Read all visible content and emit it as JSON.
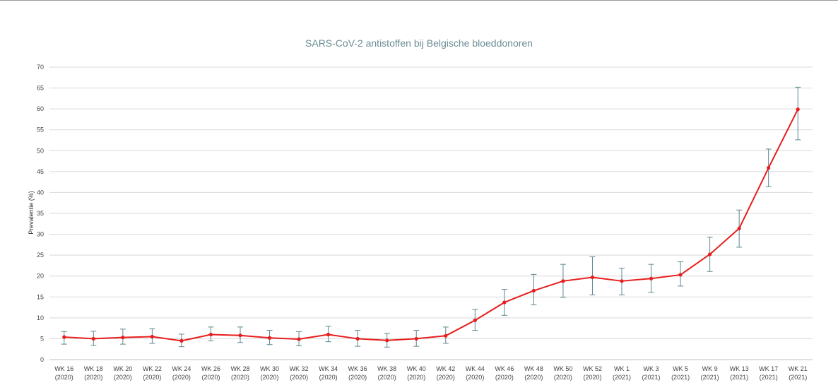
{
  "chart_data": {
    "type": "line",
    "title": "SARS-CoV-2 antistoffen bij Belgische bloeddonoren",
    "xlabel": "",
    "ylabel": "Prevalentie (%)",
    "ylim": [
      0,
      70
    ],
    "yticks": [
      0,
      5,
      10,
      15,
      20,
      25,
      30,
      35,
      40,
      45,
      50,
      55,
      60,
      65,
      70
    ],
    "grid": true,
    "legend": "none",
    "categories": [
      [
        "WK 16",
        "(2020)"
      ],
      [
        "WK 18",
        "(2020)"
      ],
      [
        "WK 20",
        "(2020)"
      ],
      [
        "WK 22",
        "(2020)"
      ],
      [
        "WK 24",
        "(2020)"
      ],
      [
        "WK 26",
        "(2020)"
      ],
      [
        "WK 28",
        "(2020)"
      ],
      [
        "WK 30",
        "(2020)"
      ],
      [
        "WK 32",
        "(2020)"
      ],
      [
        "WK 34",
        "(2020)"
      ],
      [
        "WK 36",
        "(2020)"
      ],
      [
        "WK 38",
        "(2020)"
      ],
      [
        "WK 40",
        "(2020)"
      ],
      [
        "WK 42",
        "(2020)"
      ],
      [
        "WK 44",
        "(2020)"
      ],
      [
        "WK 46",
        "(2020)"
      ],
      [
        "WK 48",
        "(2020)"
      ],
      [
        "WK 50",
        "(2020)"
      ],
      [
        "WK 52",
        "(2020)"
      ],
      [
        "WK 1",
        "(2021)"
      ],
      [
        "WK 3",
        "(2021)"
      ],
      [
        "WK 5",
        "(2021)"
      ],
      [
        "WK 9",
        "(2021)"
      ],
      [
        "WK 13",
        "(2021)"
      ],
      [
        "WK 17",
        "(2021)"
      ],
      [
        "WK 21",
        "(2021)"
      ]
    ],
    "series": [
      {
        "values": [
          5.4,
          5.0,
          5.3,
          5.5,
          4.5,
          6.0,
          5.8,
          5.2,
          4.9,
          6.0,
          5.0,
          4.6,
          5.0,
          5.7,
          9.4,
          13.7,
          16.5,
          18.8,
          19.7,
          18.8,
          19.4,
          20.3,
          25.2,
          31.4,
          45.9,
          59.9
        ],
        "error_low": [
          3.7,
          3.4,
          3.7,
          3.9,
          3.1,
          4.5,
          4.1,
          3.6,
          3.3,
          4.3,
          3.2,
          3.0,
          3.2,
          3.9,
          7.0,
          10.6,
          13.1,
          14.9,
          15.5,
          15.5,
          16.1,
          17.6,
          21.1,
          26.9,
          41.4,
          52.6
        ],
        "error_high": [
          6.7,
          6.8,
          7.3,
          7.4,
          6.1,
          7.8,
          7.8,
          7.0,
          6.7,
          8.0,
          7.0,
          6.3,
          7.0,
          7.8,
          12.0,
          16.8,
          20.4,
          22.8,
          24.6,
          21.9,
          22.8,
          23.4,
          29.3,
          35.8,
          50.4,
          65.2
        ]
      }
    ]
  },
  "colors": {
    "line": "#e81d1d",
    "marker": "#e81d1d",
    "error_bar": "#5d8790",
    "grid": "#d9d9d9",
    "title": "#6a8d94"
  }
}
